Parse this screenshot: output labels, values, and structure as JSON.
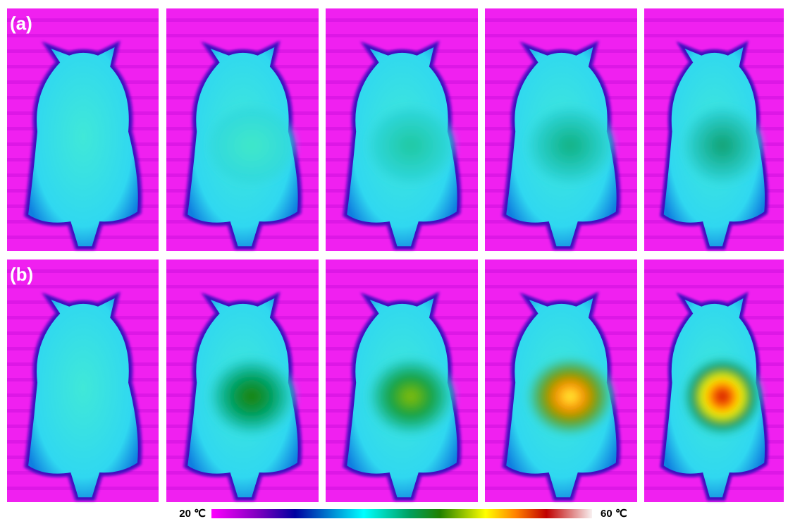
{
  "panels": [
    {
      "label": "(a)"
    },
    {
      "label": "(b)"
    }
  ],
  "colorbar": {
    "min_label": "20 ℃",
    "max_label": "60 ℃"
  }
}
